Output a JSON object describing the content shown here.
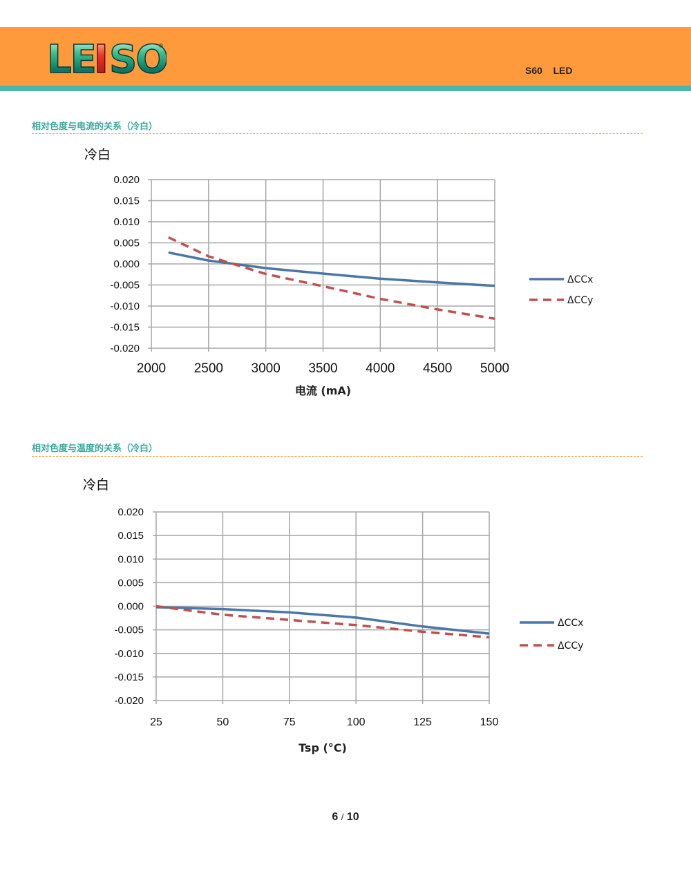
{
  "header": {
    "logo_text": "LEISO",
    "doc_title": "S60    LED",
    "brand_color": "#ff9a3c",
    "band_color": "#4cb8a8"
  },
  "sections": [
    {
      "title": "相对色度与电流的关系（冷白）"
    },
    {
      "title": "相对色度与温度的关系（冷白）"
    }
  ],
  "chart_data": [
    {
      "type": "line",
      "title": "冷白",
      "xlabel": "电流 (mA)",
      "ylabel": "",
      "xlim": [
        2000,
        5000
      ],
      "ylim": [
        -0.02,
        0.02
      ],
      "x_ticks": [
        "2000",
        "2500",
        "3000",
        "3500",
        "4000",
        "4500",
        "5000"
      ],
      "y_ticks": [
        "0.020",
        "0.015",
        "0.010",
        "0.005",
        "0.000",
        "-0.005",
        "-0.010",
        "-0.015",
        "-0.020"
      ],
      "grid": true,
      "legend_position": "right",
      "series": [
        {
          "name": "ΔCCx",
          "style": "solid",
          "color": "#4a76a8",
          "x": [
            2150,
            2500,
            3000,
            3500,
            4000,
            4500,
            5000
          ],
          "y": [
            0.0027,
            0.0008,
            -0.001,
            -0.0023,
            -0.0035,
            -0.0044,
            -0.0052
          ]
        },
        {
          "name": "ΔCCy",
          "style": "dashed",
          "color": "#c0504d",
          "x": [
            2150,
            2500,
            3000,
            3500,
            4000,
            4500,
            5000
          ],
          "y": [
            0.0063,
            0.0018,
            -0.0024,
            -0.0053,
            -0.0083,
            -0.0108,
            -0.013
          ]
        }
      ]
    },
    {
      "type": "line",
      "title": "冷白",
      "xlabel": "Tsp (°C)",
      "ylabel": "",
      "xlim": [
        25,
        150
      ],
      "ylim": [
        -0.02,
        0.02
      ],
      "x_ticks": [
        "25",
        "50",
        "75",
        "100",
        "125",
        "150"
      ],
      "y_ticks": [
        "0.020",
        "0.015",
        "0.010",
        "0.005",
        "0.000",
        "-0.005",
        "-0.010",
        "-0.015",
        "-0.020"
      ],
      "grid": true,
      "legend_position": "right",
      "series": [
        {
          "name": "ΔCCx",
          "style": "solid",
          "color": "#4a76a8",
          "x": [
            25,
            50,
            75,
            100,
            125,
            150
          ],
          "y": [
            -0.0002,
            -0.0006,
            -0.0013,
            -0.0024,
            -0.0043,
            -0.0058
          ]
        },
        {
          "name": "ΔCCy",
          "style": "dashed",
          "color": "#c0504d",
          "x": [
            25,
            50,
            75,
            100,
            125,
            150
          ],
          "y": [
            0.0,
            -0.0018,
            -0.0029,
            -0.004,
            -0.0054,
            -0.0066
          ]
        }
      ]
    }
  ],
  "page": {
    "current": "6",
    "separator": "/",
    "total": "10"
  }
}
